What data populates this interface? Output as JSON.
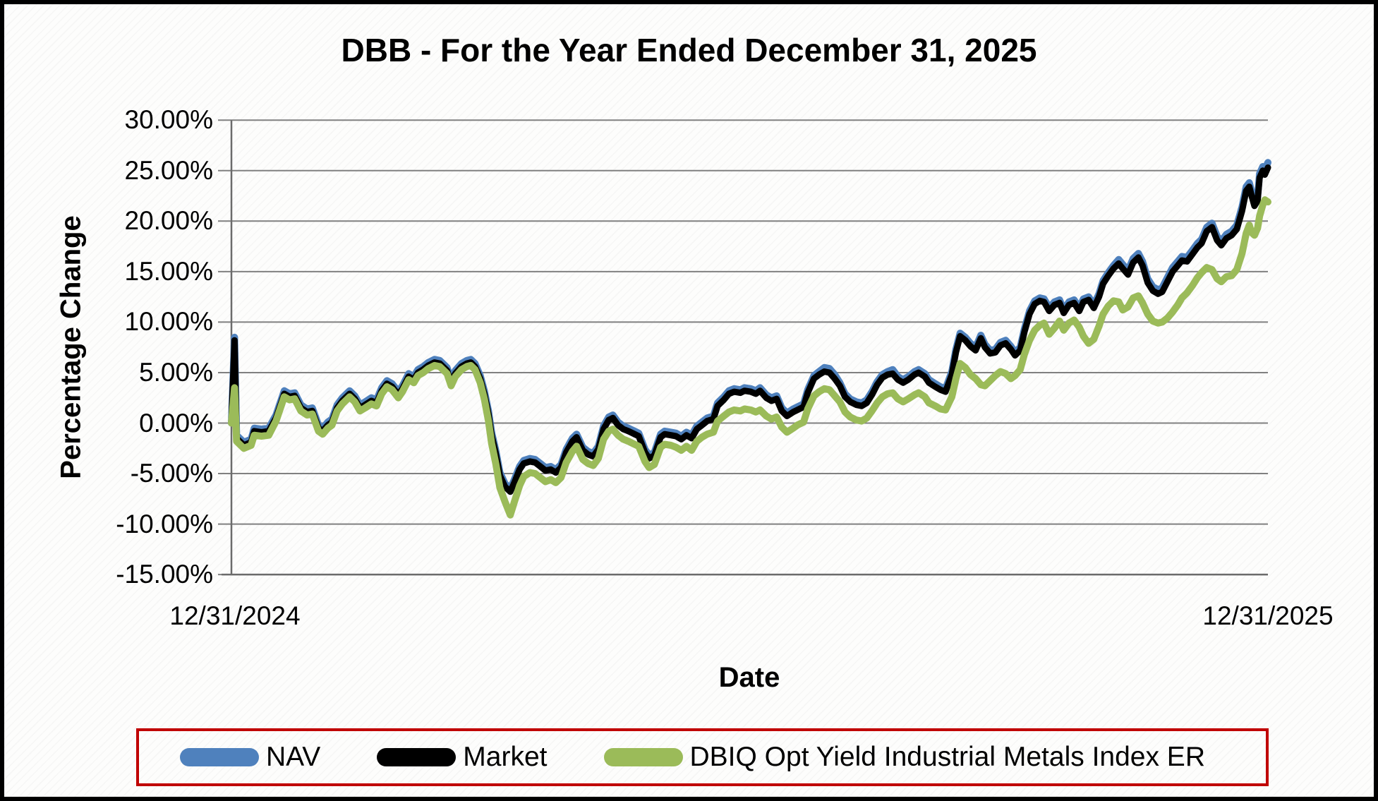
{
  "title": "DBB - For the Year Ended December 31, 2025",
  "y_axis": {
    "title": "Percentage Change",
    "ticks": [
      "30.00%",
      "25.00%",
      "20.00%",
      "15.00%",
      "10.00%",
      "5.00%",
      "0.00%",
      "-5.00%",
      "-10.00%",
      "-15.00%"
    ],
    "tick_values": [
      30,
      25,
      20,
      15,
      10,
      5,
      0,
      -5,
      -10,
      -15
    ]
  },
  "x_axis": {
    "title": "Date",
    "start_label": "12/31/2024",
    "end_label": "12/31/2025"
  },
  "legend": {
    "border_color": "#C00000",
    "items": [
      {
        "label": "NAV",
        "color": "#4F81BD"
      },
      {
        "label": "Market",
        "color": "#000000"
      },
      {
        "label": "DBIQ Opt Yield Industrial Metals Index ER",
        "color": "#9BBB59"
      }
    ]
  },
  "style_colors": {
    "gridline": "#808080",
    "axis": "#6b6b6b",
    "title_text": "#000000"
  },
  "chart_data": {
    "type": "line",
    "title": "DBB - For the Year Ended December 31, 2025",
    "xlabel": "Date",
    "ylabel": "Percentage Change",
    "units": "percent",
    "ylim": [
      -15,
      30
    ],
    "y_tick_step": 5,
    "grid": true,
    "legend_position": "bottom",
    "x_range": [
      "12/31/2024",
      "12/31/2025"
    ],
    "x_is": "fraction of year from 12/31/2024 to 12/31/2025",
    "x": [
      0.0,
      0.003,
      0.005,
      0.012,
      0.019,
      0.022,
      0.029,
      0.036,
      0.043,
      0.051,
      0.056,
      0.061,
      0.067,
      0.073,
      0.078,
      0.084,
      0.088,
      0.093,
      0.097,
      0.102,
      0.107,
      0.114,
      0.119,
      0.124,
      0.129,
      0.135,
      0.14,
      0.145,
      0.15,
      0.155,
      0.161,
      0.165,
      0.171,
      0.176,
      0.18,
      0.185,
      0.19,
      0.196,
      0.201,
      0.208,
      0.212,
      0.216,
      0.222,
      0.227,
      0.231,
      0.235,
      0.24,
      0.244,
      0.248,
      0.251,
      0.255,
      0.259,
      0.264,
      0.269,
      0.273,
      0.278,
      0.282,
      0.288,
      0.293,
      0.298,
      0.303,
      0.308,
      0.313,
      0.318,
      0.323,
      0.329,
      0.333,
      0.339,
      0.344,
      0.349,
      0.354,
      0.359,
      0.364,
      0.368,
      0.373,
      0.378,
      0.383,
      0.389,
      0.393,
      0.399,
      0.403,
      0.408,
      0.414,
      0.418,
      0.424,
      0.429,
      0.434,
      0.439,
      0.444,
      0.449,
      0.454,
      0.459,
      0.465,
      0.469,
      0.475,
      0.48,
      0.485,
      0.491,
      0.495,
      0.501,
      0.506,
      0.51,
      0.516,
      0.521,
      0.526,
      0.531,
      0.536,
      0.542,
      0.546,
      0.552,
      0.556,
      0.562,
      0.567,
      0.572,
      0.577,
      0.582,
      0.587,
      0.592,
      0.597,
      0.603,
      0.608,
      0.613,
      0.618,
      0.623,
      0.628,
      0.633,
      0.638,
      0.643,
      0.648,
      0.653,
      0.659,
      0.663,
      0.669,
      0.673,
      0.679,
      0.684,
      0.689,
      0.695,
      0.699,
      0.703,
      0.708,
      0.713,
      0.718,
      0.723,
      0.727,
      0.732,
      0.737,
      0.742,
      0.747,
      0.752,
      0.756,
      0.761,
      0.765,
      0.77,
      0.775,
      0.78,
      0.784,
      0.789,
      0.794,
      0.799,
      0.803,
      0.808,
      0.813,
      0.818,
      0.822,
      0.827,
      0.832,
      0.837,
      0.841,
      0.846,
      0.851,
      0.856,
      0.86,
      0.865,
      0.87,
      0.875,
      0.879,
      0.884,
      0.889,
      0.894,
      0.898,
      0.903,
      0.908,
      0.913,
      0.917,
      0.922,
      0.927,
      0.932,
      0.936,
      0.941,
      0.946,
      0.951,
      0.955,
      0.96,
      0.965,
      0.97,
      0.975,
      0.979,
      0.982,
      0.984,
      0.987,
      0.99,
      0.992,
      0.995,
      0.997,
      1.0
    ],
    "series": [
      {
        "name": "NAV",
        "color": "#4F81BD",
        "values": [
          0.0,
          8.5,
          -1.2,
          -1.9,
          -1.6,
          -0.5,
          -0.6,
          -0.5,
          0.8,
          3.2,
          2.9,
          3.0,
          1.8,
          1.4,
          1.5,
          -0.2,
          -0.5,
          0.1,
          0.4,
          1.8,
          2.5,
          3.2,
          2.7,
          1.8,
          2.1,
          2.5,
          2.3,
          3.5,
          4.2,
          3.9,
          3.1,
          3.7,
          4.9,
          4.6,
          5.3,
          5.6,
          6.0,
          6.3,
          6.2,
          5.5,
          4.3,
          5.2,
          5.9,
          6.2,
          6.3,
          5.9,
          4.7,
          3.2,
          1.2,
          -0.9,
          -2.7,
          -4.9,
          -6.0,
          -6.5,
          -5.6,
          -4.3,
          -3.7,
          -3.5,
          -3.6,
          -4.0,
          -4.4,
          -4.3,
          -4.6,
          -4.1,
          -2.6,
          -1.5,
          -1.1,
          -2.4,
          -2.8,
          -3.0,
          -2.3,
          -0.3,
          0.6,
          0.8,
          0.1,
          -0.3,
          -0.5,
          -0.8,
          -1.0,
          -2.6,
          -3.2,
          -2.9,
          -1.1,
          -0.8,
          -0.9,
          -1.0,
          -1.3,
          -0.9,
          -1.2,
          -0.3,
          0.1,
          0.5,
          0.7,
          2.0,
          2.6,
          3.2,
          3.4,
          3.3,
          3.5,
          3.4,
          3.2,
          3.5,
          2.8,
          2.5,
          2.7,
          1.5,
          1.0,
          1.4,
          1.6,
          1.9,
          3.3,
          4.7,
          5.1,
          5.5,
          5.4,
          4.8,
          4.0,
          2.9,
          2.4,
          2.1,
          2.0,
          2.3,
          3.1,
          4.1,
          4.8,
          5.1,
          5.3,
          4.6,
          4.3,
          4.6,
          5.1,
          5.3,
          4.9,
          4.3,
          3.9,
          3.6,
          3.4,
          5.1,
          7.3,
          8.9,
          8.5,
          7.9,
          7.5,
          8.7,
          7.8,
          7.2,
          7.3,
          8.0,
          8.2,
          7.6,
          7.0,
          7.5,
          9.3,
          11.1,
          12.1,
          12.4,
          12.3,
          11.4,
          12.0,
          12.2,
          11.2,
          12.0,
          12.2,
          11.4,
          12.3,
          12.5,
          11.7,
          12.8,
          14.1,
          14.9,
          15.6,
          16.2,
          15.7,
          15.1,
          16.3,
          16.8,
          16.0,
          14.3,
          13.5,
          13.2,
          13.4,
          14.4,
          15.4,
          16.0,
          16.5,
          16.4,
          17.1,
          17.8,
          18.2,
          19.4,
          19.8,
          18.5,
          18.0,
          18.7,
          19.0,
          19.6,
          21.4,
          23.4,
          23.8,
          23.0,
          21.9,
          22.4,
          24.7,
          25.4,
          25.1,
          25.8
        ]
      },
      {
        "name": "Market",
        "color": "#000000",
        "values": [
          0.0,
          8.2,
          -1.5,
          -2.2,
          -1.9,
          -0.8,
          -0.9,
          -0.8,
          0.5,
          2.9,
          2.6,
          2.7,
          1.5,
          1.1,
          1.2,
          -0.5,
          -0.8,
          -0.2,
          0.1,
          1.5,
          2.2,
          2.9,
          2.4,
          1.5,
          1.8,
          2.2,
          2.0,
          3.2,
          3.9,
          3.6,
          2.8,
          3.4,
          4.6,
          4.3,
          5.0,
          5.3,
          5.7,
          6.0,
          5.9,
          5.2,
          4.0,
          4.9,
          5.6,
          5.9,
          6.0,
          5.6,
          4.4,
          2.9,
          0.9,
          -1.2,
          -3.0,
          -5.2,
          -6.3,
          -6.8,
          -5.9,
          -4.6,
          -4.0,
          -3.8,
          -3.9,
          -4.3,
          -4.7,
          -4.6,
          -4.9,
          -4.4,
          -2.9,
          -1.8,
          -1.4,
          -2.7,
          -3.1,
          -3.3,
          -2.6,
          -0.6,
          0.3,
          0.5,
          -0.2,
          -0.6,
          -0.8,
          -1.1,
          -1.3,
          -2.9,
          -3.5,
          -3.2,
          -1.4,
          -1.1,
          -1.2,
          -1.3,
          -1.6,
          -1.2,
          -1.5,
          -0.6,
          -0.2,
          0.2,
          0.4,
          1.7,
          2.3,
          2.9,
          3.1,
          3.0,
          3.2,
          3.1,
          2.9,
          3.2,
          2.5,
          2.2,
          2.4,
          1.2,
          0.7,
          1.1,
          1.3,
          1.6,
          3.0,
          4.4,
          4.8,
          5.1,
          5.0,
          4.4,
          3.7,
          2.6,
          2.1,
          1.8,
          1.7,
          2.0,
          2.8,
          3.8,
          4.5,
          4.8,
          4.9,
          4.3,
          4.0,
          4.3,
          4.8,
          5.0,
          4.6,
          4.0,
          3.6,
          3.3,
          3.1,
          4.8,
          7.0,
          8.6,
          8.2,
          7.6,
          7.2,
          8.4,
          7.5,
          6.9,
          7.0,
          7.7,
          7.9,
          7.3,
          6.7,
          7.2,
          9.0,
          10.8,
          11.8,
          12.1,
          12.0,
          11.1,
          11.7,
          11.9,
          10.9,
          11.7,
          11.9,
          11.1,
          12.0,
          12.2,
          11.4,
          12.5,
          13.8,
          14.6,
          15.3,
          15.8,
          15.3,
          14.7,
          15.9,
          16.4,
          15.6,
          13.9,
          13.1,
          12.8,
          13.0,
          14.0,
          15.0,
          15.6,
          16.1,
          16.0,
          16.7,
          17.4,
          17.8,
          19.0,
          19.4,
          18.1,
          17.6,
          18.3,
          18.6,
          19.2,
          21.0,
          23.0,
          23.4,
          22.6,
          21.5,
          22.0,
          24.3,
          25.0,
          24.6,
          25.3
        ]
      },
      {
        "name": "DBIQ Opt Yield Industrial Metals Index ER",
        "color": "#9BBB59",
        "values": [
          0.0,
          3.5,
          -1.8,
          -2.5,
          -2.2,
          -1.2,
          -1.3,
          -1.2,
          0.2,
          2.6,
          2.3,
          2.4,
          1.2,
          0.8,
          0.9,
          -0.8,
          -1.1,
          -0.5,
          -0.2,
          1.2,
          1.9,
          2.6,
          2.1,
          1.2,
          1.5,
          1.9,
          1.7,
          2.9,
          3.6,
          3.3,
          2.5,
          3.1,
          4.3,
          4.0,
          4.7,
          5.0,
          5.4,
          5.7,
          5.6,
          4.9,
          3.7,
          4.6,
          5.3,
          5.6,
          5.7,
          5.3,
          4.0,
          2.4,
          0.2,
          -2.0,
          -4.0,
          -6.4,
          -7.8,
          -9.1,
          -7.8,
          -6.2,
          -5.3,
          -4.9,
          -5.0,
          -5.4,
          -5.8,
          -5.6,
          -5.9,
          -5.4,
          -3.9,
          -2.8,
          -2.3,
          -3.6,
          -4.0,
          -4.2,
          -3.5,
          -1.6,
          -0.8,
          -0.6,
          -1.2,
          -1.6,
          -1.8,
          -2.1,
          -2.3,
          -3.8,
          -4.4,
          -4.1,
          -2.4,
          -2.1,
          -2.2,
          -2.4,
          -2.7,
          -2.3,
          -2.7,
          -1.8,
          -1.4,
          -1.1,
          -0.9,
          0.2,
          0.7,
          1.1,
          1.3,
          1.2,
          1.4,
          1.3,
          1.1,
          1.3,
          0.7,
          0.4,
          0.6,
          -0.4,
          -0.9,
          -0.5,
          -0.2,
          0.1,
          1.4,
          2.7,
          3.1,
          3.4,
          3.3,
          2.7,
          2.1,
          1.1,
          0.6,
          0.3,
          0.2,
          0.5,
          1.2,
          2.0,
          2.6,
          2.9,
          3.0,
          2.4,
          2.1,
          2.4,
          2.8,
          3.0,
          2.6,
          2.0,
          1.7,
          1.4,
          1.3,
          2.6,
          4.4,
          5.9,
          5.5,
          4.8,
          4.4,
          3.8,
          3.7,
          4.2,
          4.7,
          5.1,
          4.9,
          4.4,
          4.7,
          5.3,
          6.8,
          8.2,
          9.2,
          9.7,
          9.9,
          8.8,
          9.4,
          10.1,
          9.2,
          9.9,
          10.2,
          9.5,
          8.6,
          7.9,
          8.3,
          9.6,
          10.8,
          11.6,
          12.1,
          12.0,
          11.2,
          11.5,
          12.4,
          12.6,
          11.9,
          10.8,
          10.1,
          9.9,
          10.0,
          10.4,
          11.0,
          11.7,
          12.4,
          12.9,
          13.6,
          14.4,
          14.9,
          15.4,
          15.2,
          14.3,
          14.0,
          14.5,
          14.6,
          15.2,
          16.8,
          18.8,
          19.6,
          18.9,
          18.6,
          19.3,
          20.5,
          21.6,
          22.1,
          21.9
        ]
      }
    ]
  }
}
